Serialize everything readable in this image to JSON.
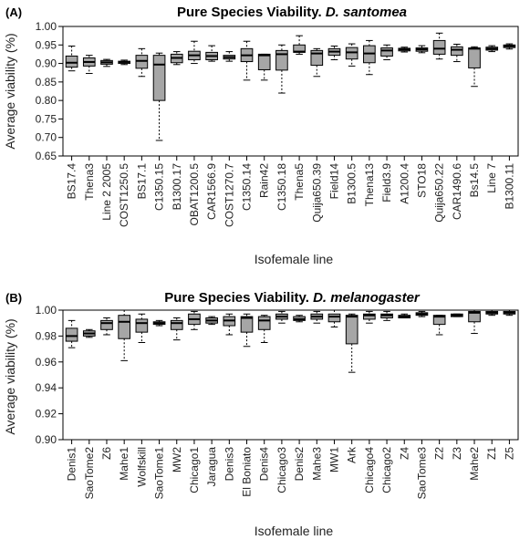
{
  "chart_data": [
    {
      "type": "box",
      "panel_label": "(A)",
      "title_prefix": "Pure Species Viability. ",
      "title_species": "D. santomea",
      "xlabel": "Isofemale line",
      "ylabel": "Average viability (%)",
      "ylim": [
        0.65,
        1.0
      ],
      "yticks": [
        0.65,
        0.7,
        0.75,
        0.8,
        0.85,
        0.9,
        0.95,
        1.0
      ],
      "ytick_labels": [
        "0.65",
        "0.70",
        "0.75",
        "0.80",
        "0.85",
        "0.90",
        "0.95",
        "1.00"
      ],
      "box_color": "#a6a6a6",
      "categories": [
        "BS17.4",
        "Thena3",
        "Line 2 2005",
        "COST1250.5",
        "BS17.1",
        "C1350.15",
        "B1300.17",
        "OBAT1200.5",
        "CAR1566.9",
        "COST1270.7",
        "C1350.14",
        "Rain42",
        "C1350.18",
        "Thena5",
        "Quija650.39",
        "Field14",
        "B1300.5",
        "Thena13",
        "Field3.9",
        "A1200.4",
        "STO18",
        "Quija650.22",
        "CAR1490.6",
        "Bs14.5",
        "Line 7",
        "B1300.11"
      ],
      "boxes": [
        {
          "min": 0.88,
          "q1": 0.89,
          "median": 0.902,
          "q3": 0.92,
          "max": 0.947
        },
        {
          "min": 0.873,
          "q1": 0.893,
          "median": 0.904,
          "q3": 0.915,
          "max": 0.922
        },
        {
          "min": 0.892,
          "q1": 0.898,
          "median": 0.903,
          "q3": 0.908,
          "max": 0.911
        },
        {
          "min": 0.897,
          "q1": 0.9,
          "median": 0.904,
          "q3": 0.906,
          "max": 0.909
        },
        {
          "min": 0.865,
          "q1": 0.887,
          "median": 0.907,
          "q3": 0.922,
          "max": 0.94
        },
        {
          "min": 0.692,
          "q1": 0.8,
          "median": 0.897,
          "q3": 0.922,
          "max": 0.928
        },
        {
          "min": 0.897,
          "q1": 0.902,
          "median": 0.915,
          "q3": 0.925,
          "max": 0.932
        },
        {
          "min": 0.9,
          "q1": 0.91,
          "median": 0.922,
          "q3": 0.933,
          "max": 0.96
        },
        {
          "min": 0.906,
          "q1": 0.91,
          "median": 0.92,
          "q3": 0.93,
          "max": 0.948
        },
        {
          "min": 0.906,
          "q1": 0.912,
          "median": 0.917,
          "q3": 0.922,
          "max": 0.932
        },
        {
          "min": 0.855,
          "q1": 0.905,
          "median": 0.922,
          "q3": 0.94,
          "max": 0.96
        },
        {
          "min": 0.855,
          "q1": 0.883,
          "median": 0.922,
          "q3": 0.925,
          "max": 0.925
        },
        {
          "min": 0.82,
          "q1": 0.882,
          "median": 0.925,
          "q3": 0.935,
          "max": 0.95
        },
        {
          "min": 0.925,
          "q1": 0.93,
          "median": 0.932,
          "q3": 0.95,
          "max": 0.975
        },
        {
          "min": 0.865,
          "q1": 0.895,
          "median": 0.927,
          "q3": 0.935,
          "max": 0.94
        },
        {
          "min": 0.91,
          "q1": 0.922,
          "median": 0.932,
          "q3": 0.94,
          "max": 0.947
        },
        {
          "min": 0.893,
          "q1": 0.912,
          "median": 0.93,
          "q3": 0.943,
          "max": 0.953
        },
        {
          "min": 0.87,
          "q1": 0.902,
          "median": 0.927,
          "q3": 0.948,
          "max": 0.962
        },
        {
          "min": 0.91,
          "q1": 0.92,
          "median": 0.935,
          "q3": 0.942,
          "max": 0.95
        },
        {
          "min": 0.931,
          "q1": 0.934,
          "median": 0.938,
          "q3": 0.941,
          "max": 0.944
        },
        {
          "min": 0.929,
          "q1": 0.933,
          "median": 0.938,
          "q3": 0.942,
          "max": 0.948
        },
        {
          "min": 0.912,
          "q1": 0.925,
          "median": 0.94,
          "q3": 0.962,
          "max": 0.982
        },
        {
          "min": 0.905,
          "q1": 0.922,
          "median": 0.937,
          "q3": 0.945,
          "max": 0.952
        },
        {
          "min": 0.838,
          "q1": 0.888,
          "median": 0.94,
          "q3": 0.942,
          "max": 0.945
        },
        {
          "min": 0.932,
          "q1": 0.936,
          "median": 0.94,
          "q3": 0.944,
          "max": 0.948
        },
        {
          "min": 0.939,
          "q1": 0.943,
          "median": 0.947,
          "q3": 0.95,
          "max": 0.953
        }
      ]
    },
    {
      "type": "box",
      "panel_label": "(B)",
      "title_prefix": "Pure Species Viability. ",
      "title_species": "D. melanogaster",
      "xlabel": "Isofemale line",
      "ylabel": "Average viability (%)",
      "ylim": [
        0.9,
        1.0
      ],
      "yticks": [
        0.9,
        0.92,
        0.94,
        0.96,
        0.98,
        1.0
      ],
      "ytick_labels": [
        "0.90",
        "0.92",
        "0.94",
        "0.96",
        "0.98",
        "1.00"
      ],
      "box_color": "#a6a6a6",
      "categories": [
        "Denis1",
        "SaoTome2",
        "Z6",
        "Mahe1",
        "Wolfskill",
        "SaoTome1",
        "MW2",
        "Chicago1",
        "Jaragua",
        "Denis3",
        "El Boniato",
        "Denis4",
        "Chicago3",
        "Denis2",
        "Mahe3",
        "MW1",
        "Ark",
        "Chicago4",
        "Chicago2",
        "Z4",
        "SaoTome3",
        "Z2",
        "Z3",
        "Mahe2",
        "Z1",
        "Z5"
      ],
      "boxes": [
        {
          "min": 0.971,
          "q1": 0.976,
          "median": 0.98,
          "q3": 0.986,
          "max": 0.992
        },
        {
          "min": 0.979,
          "q1": 0.98,
          "median": 0.982,
          "q3": 0.984,
          "max": 0.985
        },
        {
          "min": 0.981,
          "q1": 0.985,
          "median": 0.99,
          "q3": 0.992,
          "max": 0.994
        },
        {
          "min": 0.961,
          "q1": 0.978,
          "median": 0.991,
          "q3": 0.996,
          "max": 1.0
        },
        {
          "min": 0.975,
          "q1": 0.983,
          "median": 0.99,
          "q3": 0.993,
          "max": 0.997
        },
        {
          "min": 0.988,
          "q1": 0.989,
          "median": 0.99,
          "q3": 0.991,
          "max": 0.992
        },
        {
          "min": 0.977,
          "q1": 0.985,
          "median": 0.99,
          "q3": 0.992,
          "max": 0.994
        },
        {
          "min": 0.985,
          "q1": 0.989,
          "median": 0.993,
          "q3": 0.997,
          "max": 0.999
        },
        {
          "min": 0.989,
          "q1": 0.99,
          "median": 0.992,
          "q3": 0.994,
          "max": 0.995
        },
        {
          "min": 0.981,
          "q1": 0.988,
          "median": 0.992,
          "q3": 0.995,
          "max": 0.997
        },
        {
          "min": 0.972,
          "q1": 0.983,
          "median": 0.994,
          "q3": 0.995,
          "max": 0.997
        },
        {
          "min": 0.975,
          "q1": 0.985,
          "median": 0.992,
          "q3": 0.995,
          "max": 0.996
        },
        {
          "min": 0.99,
          "q1": 0.993,
          "median": 0.995,
          "q3": 0.997,
          "max": 0.999
        },
        {
          "min": 0.991,
          "q1": 0.992,
          "median": 0.993,
          "q3": 0.995,
          "max": 0.996
        },
        {
          "min": 0.99,
          "q1": 0.993,
          "median": 0.995,
          "q3": 0.997,
          "max": 0.999
        },
        {
          "min": 0.987,
          "q1": 0.991,
          "median": 0.995,
          "q3": 0.997,
          "max": 1.0
        },
        {
          "min": 0.952,
          "q1": 0.974,
          "median": 0.995,
          "q3": 0.996,
          "max": 0.997
        },
        {
          "min": 0.99,
          "q1": 0.993,
          "median": 0.996,
          "q3": 0.997,
          "max": 0.999
        },
        {
          "min": 0.992,
          "q1": 0.994,
          "median": 0.996,
          "q3": 0.997,
          "max": 0.999
        },
        {
          "min": 0.994,
          "q1": 0.994,
          "median": 0.995,
          "q3": 0.996,
          "max": 0.997
        },
        {
          "min": 0.995,
          "q1": 0.996,
          "median": 0.997,
          "q3": 0.998,
          "max": 0.999
        },
        {
          "min": 0.981,
          "q1": 0.989,
          "median": 0.995,
          "q3": 0.996,
          "max": 0.996
        },
        {
          "min": 0.995,
          "q1": 0.995,
          "median": 0.996,
          "q3": 0.997,
          "max": 0.997
        },
        {
          "min": 0.982,
          "q1": 0.991,
          "median": 0.998,
          "q3": 0.999,
          "max": 1.0
        },
        {
          "min": 0.996,
          "q1": 0.997,
          "median": 0.998,
          "q3": 0.999,
          "max": 1.0
        },
        {
          "min": 0.996,
          "q1": 0.997,
          "median": 0.998,
          "q3": 0.999,
          "max": 1.0
        }
      ]
    }
  ]
}
